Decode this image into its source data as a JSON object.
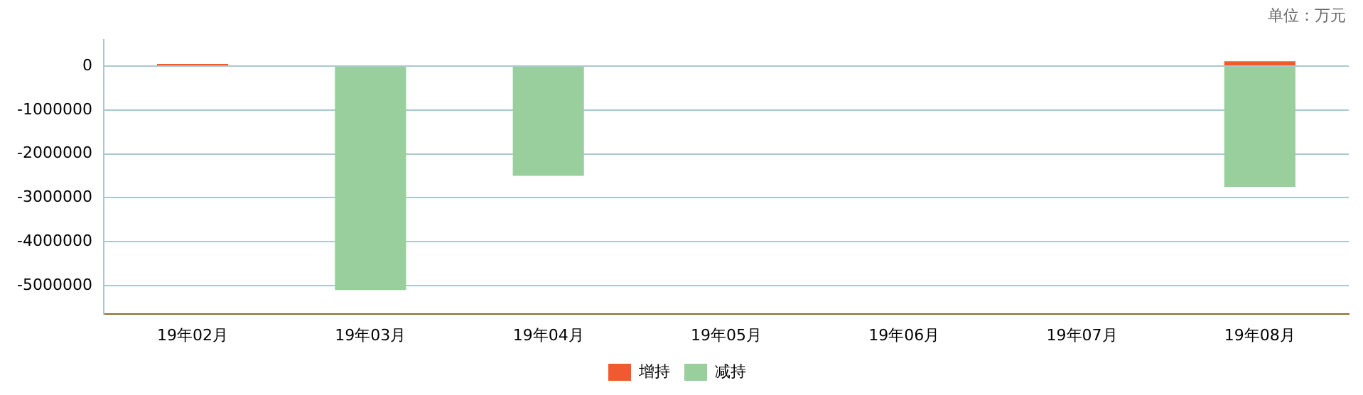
{
  "chart_data": {
    "type": "bar",
    "stacked": true,
    "categories": [
      "19年02月",
      "19年03月",
      "19年04月",
      "19年05月",
      "19年06月",
      "19年07月",
      "19年08月"
    ],
    "series": [
      {
        "name": "增持",
        "color": "#f05a30",
        "values": [
          50000,
          null,
          null,
          null,
          null,
          null,
          110000
        ]
      },
      {
        "name": "减持",
        "color": "#99cf9c",
        "values": [
          null,
          -5100000,
          -2500000,
          null,
          null,
          null,
          -2750000
        ]
      }
    ],
    "ylim": [
      -5640000,
      600000
    ],
    "yticks": [
      -5000000,
      -4000000,
      -3000000,
      -2000000,
      -1000000,
      0
    ],
    "grid": "y",
    "legend": "bottom",
    "annotations": [
      "单位：万元"
    ]
  }
}
